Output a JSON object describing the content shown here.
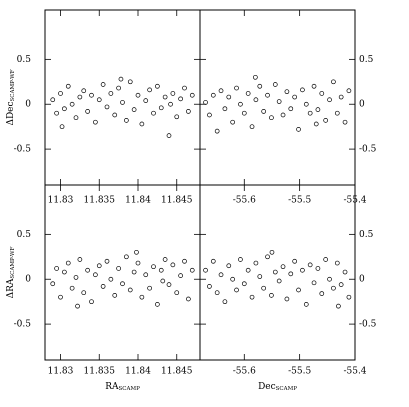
{
  "chart_data": [
    {
      "type": "scatter",
      "ylabel": "ΔDec",
      "ylabel_sub": "SCAMP-WF",
      "xlim": [
        11.828,
        11.848
      ],
      "ylim": [
        -0.9,
        1.05
      ],
      "xticks": [
        11.83,
        11.835,
        11.84,
        11.845
      ],
      "yticks": [
        0.5,
        0,
        -0.5
      ],
      "x": [
        11.829,
        11.8295,
        11.83,
        11.8305,
        11.831,
        11.8315,
        11.832,
        11.8325,
        11.833,
        11.8335,
        11.834,
        11.8345,
        11.835,
        11.8355,
        11.836,
        11.8365,
        11.837,
        11.8375,
        11.838,
        11.8385,
        11.839,
        11.8395,
        11.84,
        11.8405,
        11.841,
        11.8415,
        11.842,
        11.8425,
        11.843,
        11.8435,
        11.844,
        11.8445,
        11.845,
        11.8455,
        11.846,
        11.8465,
        11.847,
        11.8302,
        11.8378,
        11.8442
      ],
      "values": [
        0.05,
        -0.1,
        0.12,
        -0.05,
        0.2,
        0,
        -0.15,
        0.08,
        0.15,
        -0.08,
        0.1,
        -0.2,
        0.05,
        0.22,
        -0.03,
        0.12,
        -0.12,
        0.18,
        0.02,
        -0.18,
        0.25,
        -0.06,
        0.1,
        -0.22,
        0.04,
        0.16,
        -0.1,
        0.2,
        -0.04,
        0.08,
        -0.35,
        0.12,
        -0.14,
        0.06,
        0.18,
        -0.08,
        0.1,
        -0.25,
        0.28,
        0
      ]
    },
    {
      "type": "scatter",
      "xlim": [
        -55.68,
        -55.4
      ],
      "ylim": [
        -0.9,
        1.05
      ],
      "xticks": [
        -55.6,
        -55.5,
        -55.4
      ],
      "yticks": [
        0.5,
        0,
        -0.5
      ],
      "x": [
        -55.67,
        -55.663,
        -55.656,
        -55.649,
        -55.642,
        -55.635,
        -55.628,
        -55.621,
        -55.614,
        -55.607,
        -55.6,
        -55.593,
        -55.586,
        -55.579,
        -55.572,
        -55.565,
        -55.558,
        -55.551,
        -55.544,
        -55.537,
        -55.53,
        -55.523,
        -55.516,
        -55.509,
        -55.502,
        -55.495,
        -55.488,
        -55.481,
        -55.474,
        -55.467,
        -55.46,
        -55.453,
        -55.446,
        -55.439,
        -55.432,
        -55.425,
        -55.418,
        -55.411,
        -55.58,
        -55.47
      ],
      "values": [
        0.02,
        -0.12,
        0.1,
        -0.3,
        0.15,
        -0.05,
        0.08,
        -0.2,
        0.18,
        0,
        -0.1,
        0.12,
        -0.25,
        0.05,
        0.2,
        -0.08,
        0.1,
        -0.15,
        0.22,
        0.03,
        -0.12,
        0.14,
        -0.05,
        0.08,
        -0.28,
        0.16,
        0,
        -0.1,
        0.2,
        -0.06,
        0.12,
        -0.18,
        0.05,
        0.25,
        -0.1,
        0.08,
        -0.2,
        0.15,
        0.3,
        -0.22
      ]
    },
    {
      "type": "scatter",
      "ylabel": "ΔRA",
      "ylabel_sub": "SCAMP-WF",
      "xlabel": "RA",
      "xlabel_sub": "SCAMP",
      "xlim": [
        11.828,
        11.848
      ],
      "ylim": [
        -0.9,
        1.05
      ],
      "xticks": [
        11.83,
        11.835,
        11.84,
        11.845
      ],
      "yticks": [
        0.5,
        0,
        -0.5
      ],
      "x": [
        11.829,
        11.8295,
        11.83,
        11.8305,
        11.831,
        11.8315,
        11.832,
        11.8325,
        11.833,
        11.8335,
        11.834,
        11.8345,
        11.835,
        11.8355,
        11.836,
        11.8365,
        11.837,
        11.8375,
        11.838,
        11.8385,
        11.839,
        11.8395,
        11.84,
        11.8405,
        11.841,
        11.8415,
        11.842,
        11.8425,
        11.843,
        11.8435,
        11.844,
        11.8445,
        11.845,
        11.8455,
        11.846,
        11.8465,
        11.847,
        11.8322,
        11.8398,
        11.8432
      ],
      "values": [
        -0.05,
        0.12,
        -0.2,
        0.08,
        0.18,
        -0.1,
        0.02,
        0.22,
        -0.15,
        0.1,
        -0.25,
        0.05,
        0.15,
        -0.08,
        0.2,
        0,
        -0.18,
        0.12,
        -0.05,
        0.25,
        -0.12,
        0.08,
        0.18,
        -0.2,
        0.05,
        -0.1,
        0.14,
        -0.28,
        0.1,
        0.22,
        -0.06,
        0.16,
        -0.15,
        0.04,
        0.2,
        -0.22,
        0.1,
        -0.3,
        0.3,
        -0.02
      ]
    },
    {
      "type": "scatter",
      "xlabel": "Dec",
      "xlabel_sub": "SCAMP",
      "xlim": [
        -55.68,
        -55.4
      ],
      "ylim": [
        -0.9,
        1.05
      ],
      "xticks": [
        -55.6,
        -55.5,
        -55.4
      ],
      "yticks": [
        0.5,
        0,
        -0.5
      ],
      "x": [
        -55.67,
        -55.663,
        -55.656,
        -55.649,
        -55.642,
        -55.635,
        -55.628,
        -55.621,
        -55.614,
        -55.607,
        -55.6,
        -55.593,
        -55.586,
        -55.579,
        -55.572,
        -55.565,
        -55.558,
        -55.551,
        -55.544,
        -55.537,
        -55.53,
        -55.523,
        -55.516,
        -55.509,
        -55.502,
        -55.495,
        -55.488,
        -55.481,
        -55.474,
        -55.467,
        -55.46,
        -55.453,
        -55.446,
        -55.439,
        -55.432,
        -55.425,
        -55.418,
        -55.411,
        -55.55,
        -55.43
      ],
      "values": [
        0.1,
        -0.08,
        0.2,
        -0.15,
        0.05,
        -0.25,
        0.15,
        0,
        -0.12,
        0.22,
        -0.05,
        0.1,
        -0.2,
        0.18,
        0.03,
        -0.1,
        0.25,
        -0.18,
        0.08,
        -0.02,
        0.14,
        -0.22,
        0.06,
        0.2,
        -0.12,
        0.1,
        -0.28,
        0.16,
        -0.04,
        0.12,
        -0.16,
        0.22,
        0,
        -0.1,
        0.18,
        -0.06,
        0.08,
        -0.2,
        0.3,
        -0.3
      ]
    }
  ]
}
